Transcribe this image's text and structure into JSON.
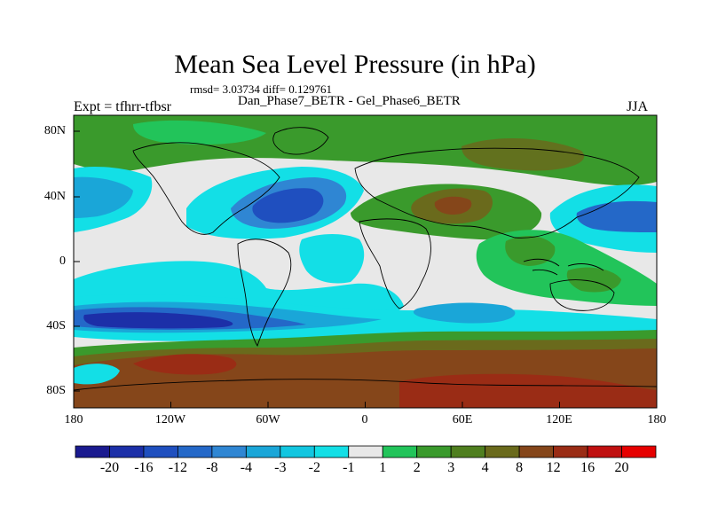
{
  "title": "Mean Sea Level Pressure (in hPa)",
  "stats": "rmsd= 3.03734 diff= 0.129761",
  "subtitle": "Dan_Phase7_BETR - Gel_Phase6_BETR",
  "experiment": "Expt = tfhrr-tfbsr",
  "season": "JJA",
  "lat_labels": [
    "80N",
    "40N",
    "0",
    "40S",
    "80S"
  ],
  "lon_labels": [
    "180",
    "120W",
    "60W",
    "0",
    "60E",
    "120E",
    "180"
  ],
  "colorbar": {
    "labels": [
      "-20",
      "-16",
      "-12",
      "-8",
      "-4",
      "-3",
      "-2",
      "-1",
      "1",
      "2",
      "3",
      "4",
      "8",
      "12",
      "16",
      "20"
    ],
    "colors": [
      "#1a1a8f",
      "#1c2fa8",
      "#1f4fbf",
      "#2468c8",
      "#2f86d3",
      "#1aa6d8",
      "#12c6e0",
      "#13dfe6",
      "#e8e8e8",
      "#22c45a",
      "#3a9a2c",
      "#4f7f1f",
      "#6a6a1c",
      "#85461a",
      "#9a2c15",
      "#c01010",
      "#e60000"
    ]
  }
}
